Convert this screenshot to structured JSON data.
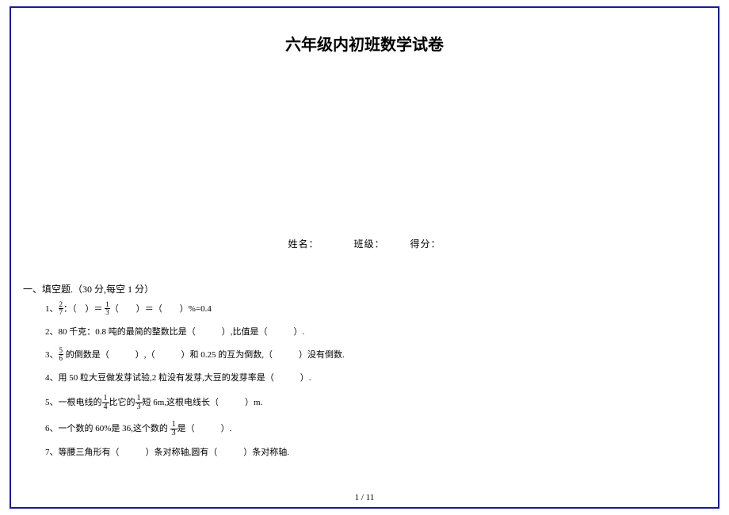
{
  "title": "六年级内初班数学试卷",
  "info": {
    "name_label": "姓名：",
    "class_label": "班级：",
    "score_label": "得分："
  },
  "section": {
    "header": "一、填空题.（30 分,每空 1 分）"
  },
  "questions": {
    "q1": {
      "prefix": "1、",
      "frac1_num": "2",
      "frac1_den": "7",
      "part1": "：（　）＝",
      "frac2_num": "1",
      "frac2_den": "3",
      "part2": "（　　）＝（　　）%=0.4"
    },
    "q2": "2、80 千克：0.8 吨的最简的整数比是（　　　）,比值是（　　　）.",
    "q3": {
      "prefix": "3、",
      "frac_num": "5",
      "frac_den": "6",
      "rest": " 的倒数是（　　　）,（　　　）和 0.25 的互为倒数,（　　　）没有倒数."
    },
    "q4": "4、用 50 粒大豆做发芽试验,2 粒没有发芽,大豆的发芽率是（　　　）.",
    "q5": {
      "prefix": "5、一根电线的",
      "frac1_num": "1",
      "frac1_den": "4",
      "mid": "比它的",
      "frac2_num": "1",
      "frac2_den": "3",
      "rest": "短 6m,这根电线长（　　　）m."
    },
    "q6": {
      "prefix": "6、一个数的 60%是 36,这个数的 ",
      "frac_num": "1",
      "frac_den": "3",
      "rest": "是（　　　）."
    },
    "q7": "7、等腰三角形有（　　　）条对称轴,圆有（　　　）条对称轴."
  },
  "page_num": "1 / 11",
  "colors": {
    "border": "#1a1a9e",
    "text": "#000000",
    "background": "#ffffff"
  }
}
